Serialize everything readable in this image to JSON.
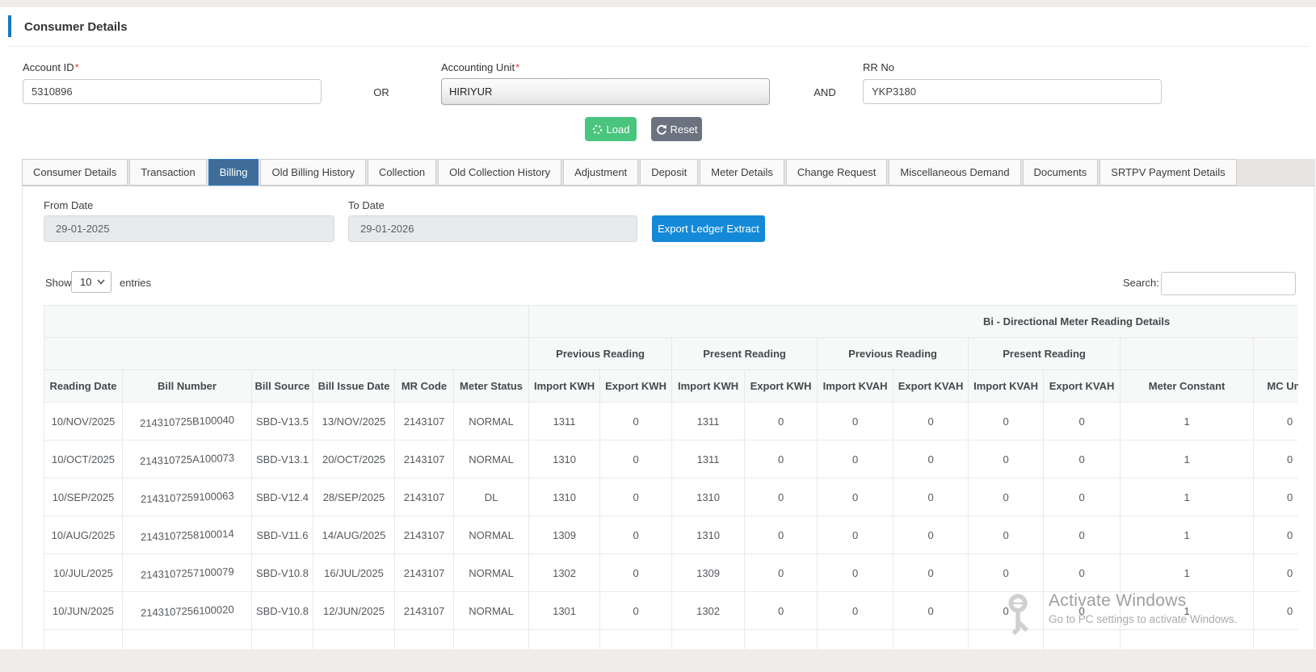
{
  "page": {
    "title": "Consumer Details"
  },
  "form": {
    "account_id": {
      "label": "Account ID",
      "required": "*",
      "value": "5310896"
    },
    "or_label": "OR",
    "accounting_unit": {
      "label": "Accounting Unit",
      "required": "*",
      "value": "HIRIYUR"
    },
    "and_label": "AND",
    "rr_no": {
      "label": "RR No",
      "value": "YKP3180"
    },
    "load_label": "Load",
    "reset_label": "Reset"
  },
  "tabs": {
    "active_index": 2,
    "items": [
      "Consumer Details",
      "Transaction",
      "Billing",
      "Old Billing History",
      "Collection",
      "Old Collection History",
      "Adjustment",
      "Deposit",
      "Meter Details",
      "Change Request",
      "Miscellaneous Demand",
      "Documents",
      "SRTPV Payment Details"
    ]
  },
  "filters": {
    "from_date": {
      "label": "From Date",
      "value": "29-01-2025"
    },
    "to_date": {
      "label": "To Date",
      "value": "29-01-2026"
    },
    "export_label": "Export Ledger Extract"
  },
  "datatable": {
    "show_label": "Show",
    "page_size": "10",
    "entries_label": "entries",
    "search_label": "Search:",
    "search_value": "",
    "group_header": "Bi - Directional Meter Reading Details",
    "subgroups": [
      "Previous Reading",
      "Present Reading",
      "Previous Reading",
      "Present Reading"
    ],
    "columns": [
      "Reading Date",
      "Bill Number",
      "Bill Source",
      "Bill Issue Date",
      "MR Code",
      "Meter Status",
      "Import KWH",
      "Export KWH",
      "Import KWH",
      "Export KWH",
      "Import KVAH",
      "Export KVAH",
      "Import KVAH",
      "Export KVAH",
      "Meter Constant",
      "MC Units"
    ],
    "rows": [
      [
        "10/NOV/2025",
        "214310725B100040",
        "SBD-V13.5",
        "13/NOV/2025",
        "2143107",
        "NORMAL",
        "1311",
        "0",
        "1311",
        "0",
        "0",
        "0",
        "0",
        "0",
        "1",
        "0"
      ],
      [
        "10/OCT/2025",
        "214310725A100073",
        "SBD-V13.1",
        "20/OCT/2025",
        "2143107",
        "NORMAL",
        "1310",
        "0",
        "1311",
        "0",
        "0",
        "0",
        "0",
        "0",
        "1",
        "0"
      ],
      [
        "10/SEP/2025",
        "2143107259100063",
        "SBD-V12.4",
        "28/SEP/2025",
        "2143107",
        "DL",
        "1310",
        "0",
        "1310",
        "0",
        "0",
        "0",
        "0",
        "0",
        "1",
        "0"
      ],
      [
        "10/AUG/2025",
        "2143107258100014",
        "SBD-V11.6",
        "14/AUG/2025",
        "2143107",
        "NORMAL",
        "1309",
        "0",
        "1310",
        "0",
        "0",
        "0",
        "0",
        "0",
        "1",
        "0"
      ],
      [
        "10/JUL/2025",
        "2143107257100079",
        "SBD-V10.8",
        "16/JUL/2025",
        "2143107",
        "NORMAL",
        "1302",
        "0",
        "1309",
        "0",
        "0",
        "0",
        "0",
        "0",
        "1",
        "0"
      ],
      [
        "10/JUN/2025",
        "2143107256100020",
        "SBD-V10.8",
        "12/JUN/2025",
        "2143107",
        "NORMAL",
        "1301",
        "0",
        "1302",
        "0",
        "0",
        "0",
        "0",
        "0",
        "1",
        "0"
      ]
    ]
  },
  "watermark": {
    "line1": "Activate Windows",
    "line2": "Go to PC settings to activate Windows."
  },
  "colors": {
    "accent_bar": "#1878be",
    "active_tab": "#3e6d99",
    "active_tab_border": "#2e7cc9",
    "load_button": "#49c57e",
    "reset_button": "#6b7280",
    "export_button": "#1489d8",
    "required_asterisk": "#e23b3b",
    "strip_bg": "#efecea",
    "header_bg": "#f7f8f8"
  }
}
